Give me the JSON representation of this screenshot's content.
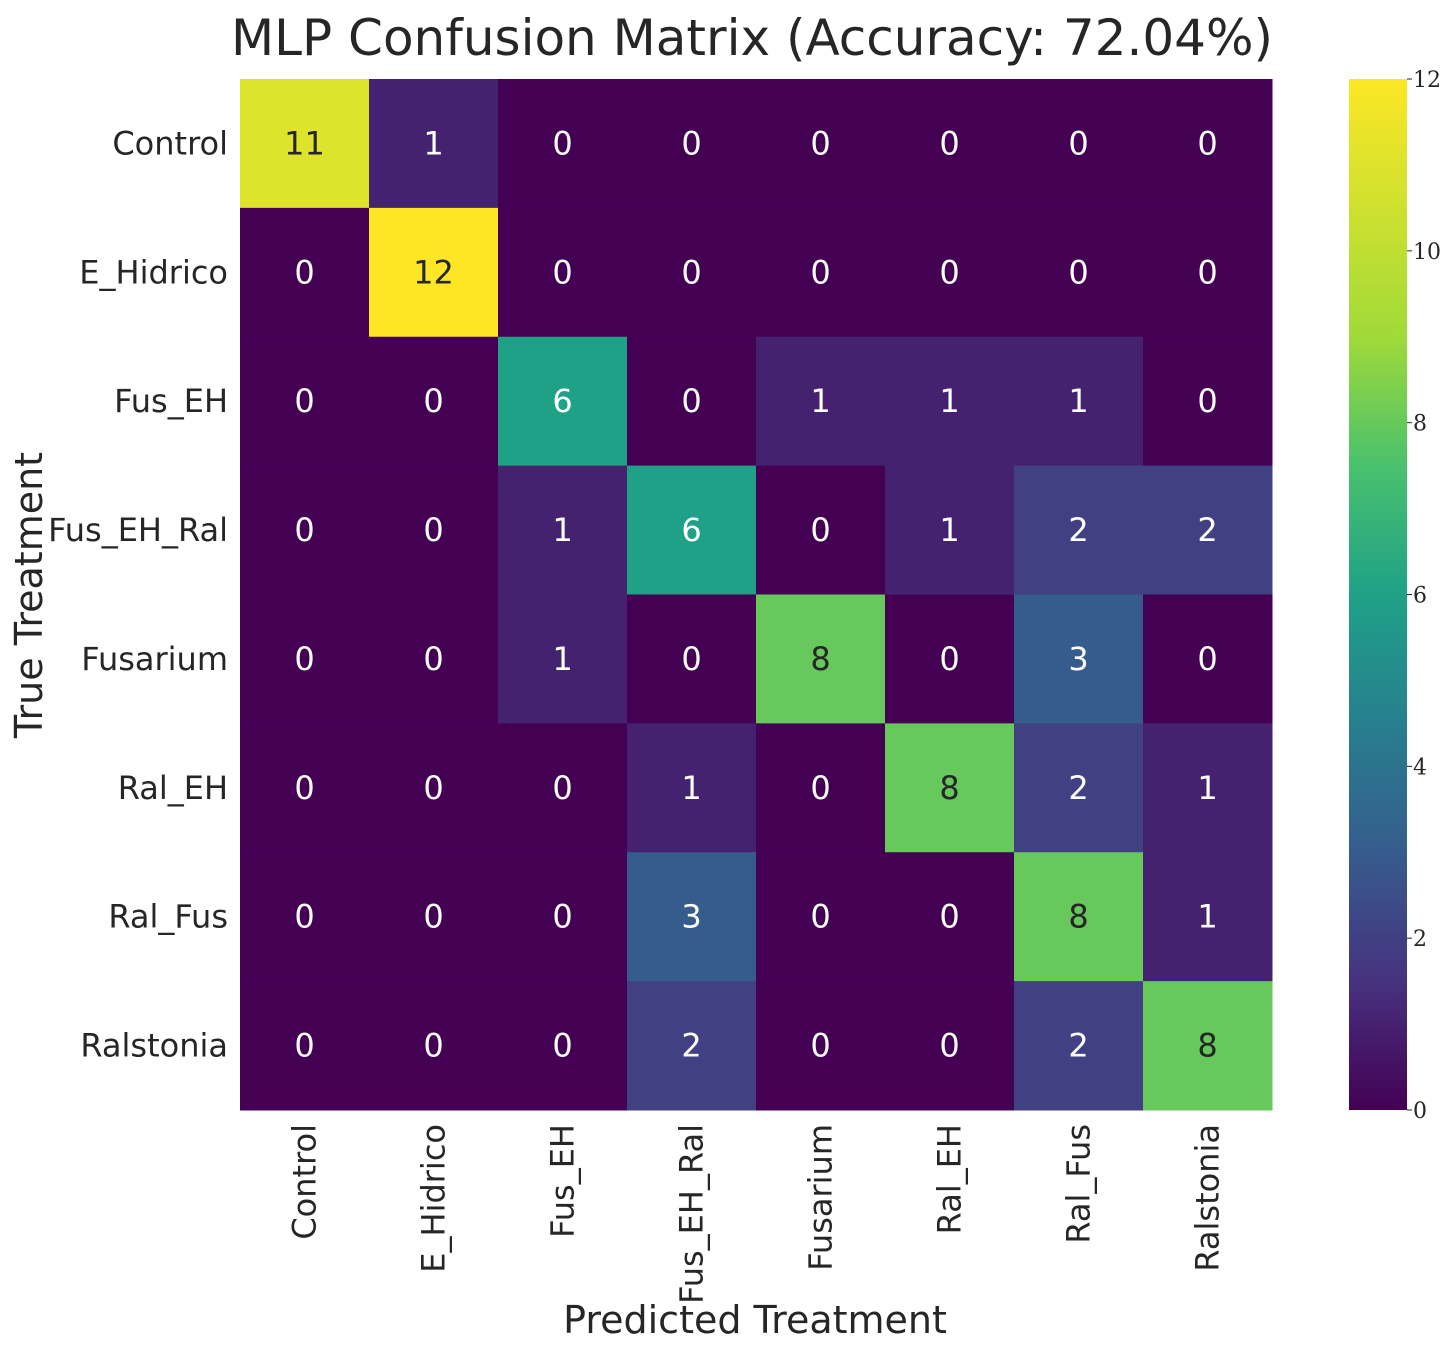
{
  "chart_data": {
    "type": "heatmap",
    "title": "MLP Confusion Matrix (Accuracy: 72.04%)",
    "xlabel": "Predicted Treatment",
    "ylabel": "True Treatment",
    "x_categories": [
      "Control",
      "E_Hidrico",
      "Fus_EH",
      "Fus_EH_Ral",
      "Fusarium",
      "Ral_EH",
      "Ral_Fus",
      "Ralstonia"
    ],
    "y_categories": [
      "Control",
      "E_Hidrico",
      "Fus_EH",
      "Fus_EH_Ral",
      "Fusarium",
      "Ral_EH",
      "Ral_Fus",
      "Ralstonia"
    ],
    "values": [
      [
        11,
        1,
        0,
        0,
        0,
        0,
        0,
        0
      ],
      [
        0,
        12,
        0,
        0,
        0,
        0,
        0,
        0
      ],
      [
        0,
        0,
        6,
        0,
        1,
        1,
        1,
        0
      ],
      [
        0,
        0,
        1,
        6,
        0,
        1,
        2,
        2
      ],
      [
        0,
        0,
        1,
        0,
        8,
        0,
        3,
        0
      ],
      [
        0,
        0,
        0,
        1,
        0,
        8,
        2,
        1
      ],
      [
        0,
        0,
        0,
        3,
        0,
        0,
        8,
        1
      ],
      [
        0,
        0,
        0,
        2,
        0,
        0,
        2,
        8
      ]
    ],
    "colorbar": {
      "min": 0,
      "max": 12,
      "ticks": [
        "0",
        "2",
        "4",
        "6",
        "8",
        "10",
        "12"
      ],
      "colormap": "viridis"
    },
    "grid": false,
    "legend": "colorbar-right"
  }
}
